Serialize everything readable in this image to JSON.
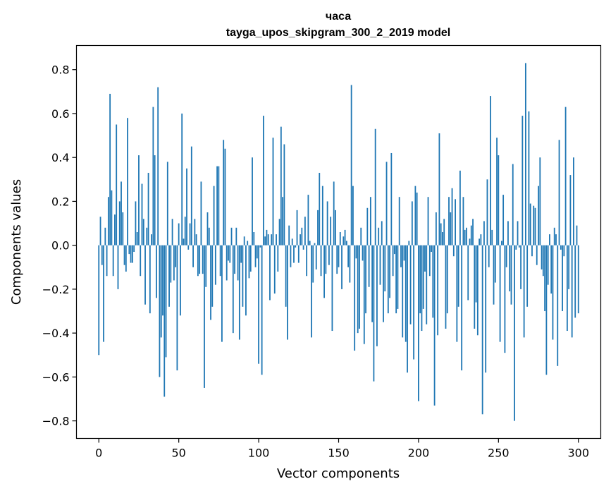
{
  "chart_data": {
    "type": "bar",
    "title_line1": "часа",
    "title_line2": "tayga_upos_skipgram_300_2_2019 model",
    "xlabel": "Vector components",
    "ylabel": "Components values",
    "xlim": [
      -14,
      314
    ],
    "ylim": [
      -0.88,
      0.91
    ],
    "xticks": [
      0,
      50,
      100,
      150,
      200,
      250,
      300
    ],
    "yticks": [
      -0.8,
      -0.6,
      -0.4,
      -0.2,
      0.0,
      0.2,
      0.4,
      0.6,
      0.8
    ],
    "ytick_labels": [
      "−0.8",
      "−0.6",
      "−0.4",
      "−0.2",
      "0.0",
      "0.2",
      "0.4",
      "0.6",
      "0.8"
    ],
    "grid": false,
    "bar_color": "#1f77b4",
    "values": [
      -0.5,
      0.13,
      -0.09,
      -0.44,
      0.08,
      -0.14,
      0.22,
      0.69,
      0.25,
      -0.14,
      0.14,
      0.55,
      -0.2,
      0.2,
      0.29,
      0.15,
      -0.09,
      -0.12,
      0.58,
      -0.04,
      -0.08,
      -0.08,
      -0.03,
      0.2,
      0.06,
      0.41,
      -0.14,
      0.28,
      0.12,
      -0.27,
      0.08,
      0.33,
      -0.31,
      0.05,
      0.63,
      0.41,
      -0.24,
      0.72,
      -0.6,
      -0.42,
      -0.32,
      -0.69,
      -0.51,
      0.38,
      -0.28,
      -0.17,
      0.12,
      -0.16,
      -0.1,
      -0.57,
      0.1,
      -0.32,
      0.6,
      0.03,
      0.13,
      0.35,
      -0.02,
      0.1,
      0.45,
      -0.1,
      0.12,
      0.05,
      -0.14,
      -0.13,
      0.29,
      -0.13,
      -0.65,
      -0.19,
      0.15,
      0.08,
      -0.34,
      -0.28,
      0.27,
      -0.18,
      0.36,
      0.36,
      -0.14,
      -0.44,
      0.48,
      0.44,
      -0.16,
      -0.07,
      -0.08,
      0.08,
      -0.4,
      -0.13,
      0.08,
      -0.16,
      -0.43,
      -0.08,
      -0.28,
      0.04,
      -0.32,
      0.02,
      -0.15,
      -0.12,
      0.4,
      0.06,
      -0.1,
      -0.06,
      -0.54,
      -0.01,
      -0.59,
      0.59,
      0.04,
      0.07,
      0.05,
      -0.25,
      0.05,
      0.49,
      -0.22,
      0.05,
      -0.12,
      0.12,
      0.54,
      0.22,
      0.46,
      -0.28,
      -0.43,
      0.09,
      -0.1,
      0.03,
      -0.08,
      -0.01,
      0.16,
      -0.08,
      0.05,
      0.08,
      -0.02,
      0.13,
      -0.14,
      0.23,
      0.02,
      -0.42,
      -0.17,
      0.01,
      -0.11,
      0.16,
      0.33,
      -0.14,
      0.27,
      -0.24,
      -0.13,
      0.2,
      -0.09,
      0.13,
      -0.39,
      0.29,
      0.16,
      -0.13,
      -0.1,
      0.06,
      -0.2,
      0.04,
      0.07,
      0.02,
      -0.1,
      -0.17,
      0.73,
      0.27,
      -0.48,
      -0.06,
      -0.4,
      -0.38,
      0.08,
      -0.07,
      -0.45,
      -0.31,
      0.17,
      -0.19,
      0.22,
      -0.35,
      -0.62,
      0.53,
      -0.46,
      0.08,
      -0.18,
      0.11,
      -0.35,
      -0.21,
      0.38,
      -0.31,
      -0.24,
      0.42,
      -0.14,
      -0.04,
      -0.31,
      -0.29,
      0.22,
      -0.1,
      -0.42,
      -0.07,
      -0.44,
      -0.58,
      0.02,
      -0.36,
      0.2,
      -0.52,
      0.27,
      0.24,
      -0.71,
      -0.31,
      -0.39,
      -0.29,
      -0.12,
      -0.36,
      0.22,
      -0.14,
      -0.03,
      -0.33,
      -0.73,
      0.15,
      -0.41,
      0.51,
      0.1,
      0.06,
      0.12,
      -0.38,
      -0.31,
      0.22,
      0.15,
      0.26,
      -0.05,
      0.21,
      -0.44,
      -0.28,
      0.34,
      -0.57,
      0.22,
      0.07,
      0.08,
      -0.25,
      0.03,
      0.09,
      0.12,
      -0.38,
      -0.26,
      -0.41,
      0.03,
      0.05,
      -0.77,
      0.11,
      -0.58,
      0.3,
      -0.1,
      0.68,
      0.07,
      -0.27,
      -0.17,
      0.49,
      0.41,
      -0.44,
      0.02,
      0.23,
      -0.49,
      -0.1,
      0.11,
      -0.21,
      -0.27,
      0.37,
      -0.8,
      -0.02,
      0.11,
      -0.01,
      -0.2,
      0.59,
      -0.42,
      0.83,
      -0.28,
      0.61,
      0.19,
      -0.05,
      0.18,
      0.17,
      -0.09,
      0.27,
      0.4,
      -0.11,
      -0.14,
      -0.3,
      -0.59,
      -0.18,
      0.05,
      -0.22,
      -0.43,
      0.08,
      0.05,
      -0.55,
      0.48,
      -0.02,
      -0.3,
      -0.05,
      0.63,
      -0.39,
      -0.2,
      0.32,
      -0.42,
      0.4,
      -0.33,
      0.09,
      -0.31
    ]
  }
}
